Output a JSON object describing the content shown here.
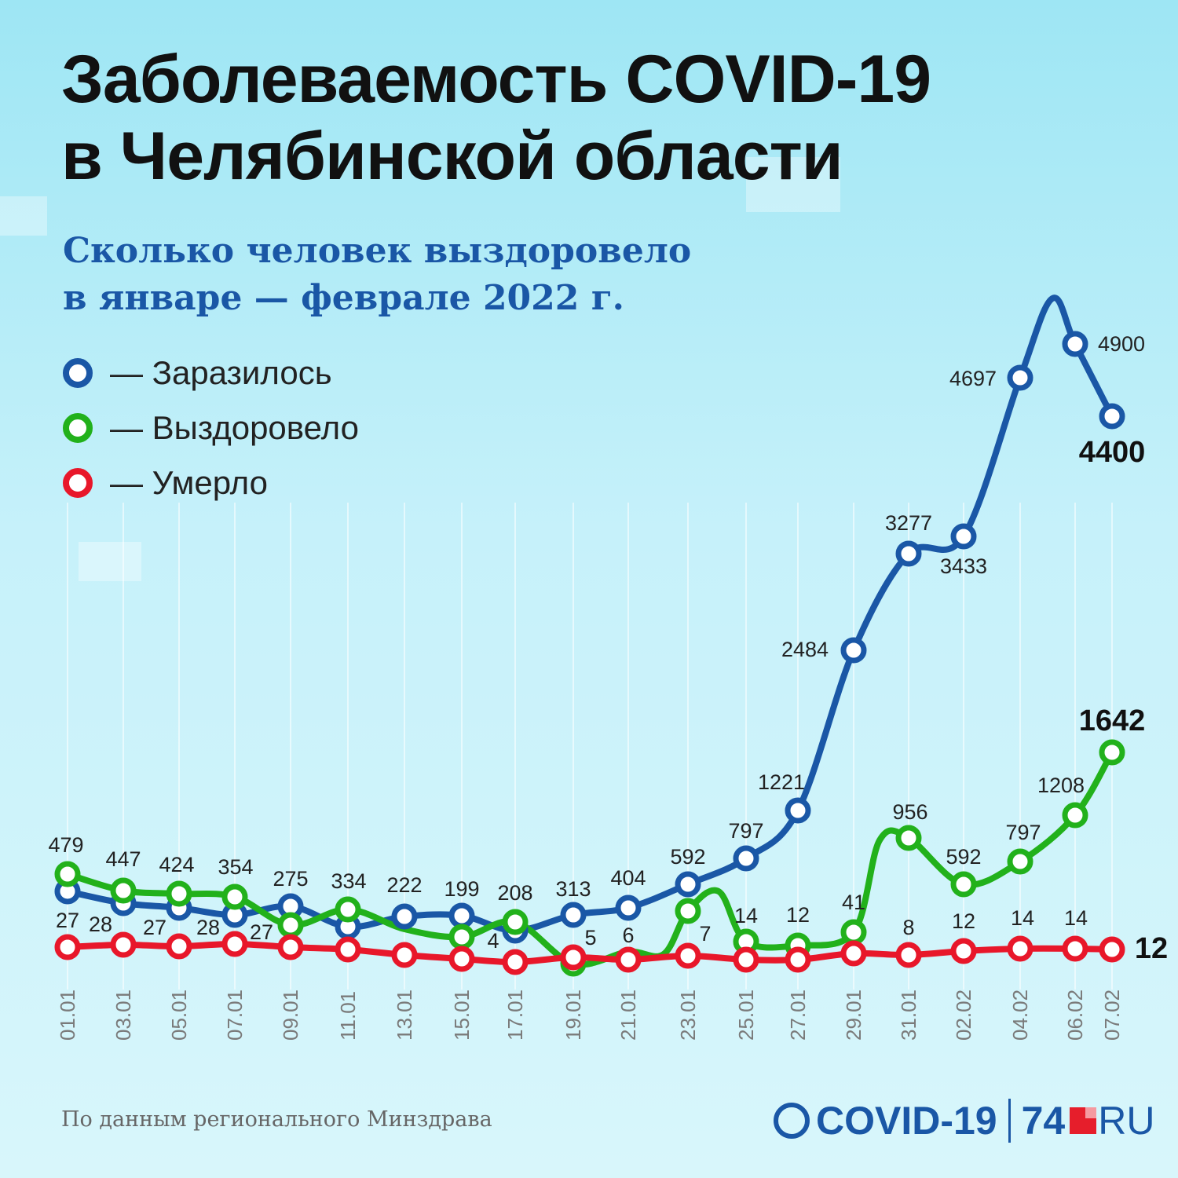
{
  "title_lines": [
    "Заболеваемость COVID-19",
    "в Челябинской области"
  ],
  "subtitle_lines": [
    "Сколько человек выздоровело",
    "в январе — феврале 2022 г."
  ],
  "legend": [
    {
      "label": "— Заразилось",
      "color": "#1a57a6"
    },
    {
      "label": "— Выздоровело",
      "color": "#22b11b"
    },
    {
      "label": "— Умерло",
      "color": "#e8172a"
    }
  ],
  "source": "По данным регионального Минздрава",
  "logo": {
    "covid": "COVID-19",
    "num": "74",
    "ru": "RU"
  },
  "chart_data": {
    "type": "line",
    "categories": [
      "01.01",
      "03.01",
      "05.01",
      "07.01",
      "09.01",
      "11.01",
      "13.01",
      "15.01",
      "17.01",
      "19.01",
      "21.01",
      "23.01",
      "25.01",
      "27.01",
      "29.01",
      "31.01",
      "02.02",
      "04.02",
      "06.02",
      "07.02"
    ],
    "series": [
      {
        "name": "Заразилось",
        "color": "#1a57a6",
        "values": [
          null,
          null,
          null,
          null,
          275,
          null,
          222,
          199,
          null,
          313,
          404,
          592,
          797,
          1221,
          2484,
          3277,
          3433,
          4697,
          4900,
          4400
        ],
        "labels": [
          "",
          "",
          "",
          "",
          "275",
          "",
          "222",
          "199",
          "",
          "313",
          "404",
          "592",
          "797",
          "1221",
          "2484",
          "3277",
          "3433",
          "4697",
          "4900",
          "4400"
        ]
      },
      {
        "name": "Выздоровело",
        "color": "#22b11b",
        "values": [
          479,
          447,
          424,
          354,
          null,
          334,
          null,
          null,
          208,
          null,
          null,
          null,
          null,
          null,
          41,
          956,
          592,
          797,
          1208,
          1642
        ],
        "labels": [
          "479",
          "447",
          "424",
          "354",
          "",
          "334",
          "",
          "",
          "208",
          "",
          "",
          "",
          "",
          "",
          "41",
          "956",
          "592",
          "797",
          "1208",
          "1642"
        ]
      },
      {
        "name": "Умерло",
        "color": "#e8172a",
        "values": [
          27,
          28,
          27,
          28,
          27,
          null,
          null,
          null,
          4,
          5,
          6,
          7,
          14,
          12,
          null,
          8,
          12,
          14,
          14,
          12
        ],
        "labels": [
          "27",
          "28",
          "27",
          "28",
          "27",
          "",
          "",
          "",
          "4",
          "5",
          "6",
          "7",
          "14",
          "12",
          "",
          "8",
          "12",
          "14",
          "14",
          "12"
        ]
      }
    ]
  }
}
